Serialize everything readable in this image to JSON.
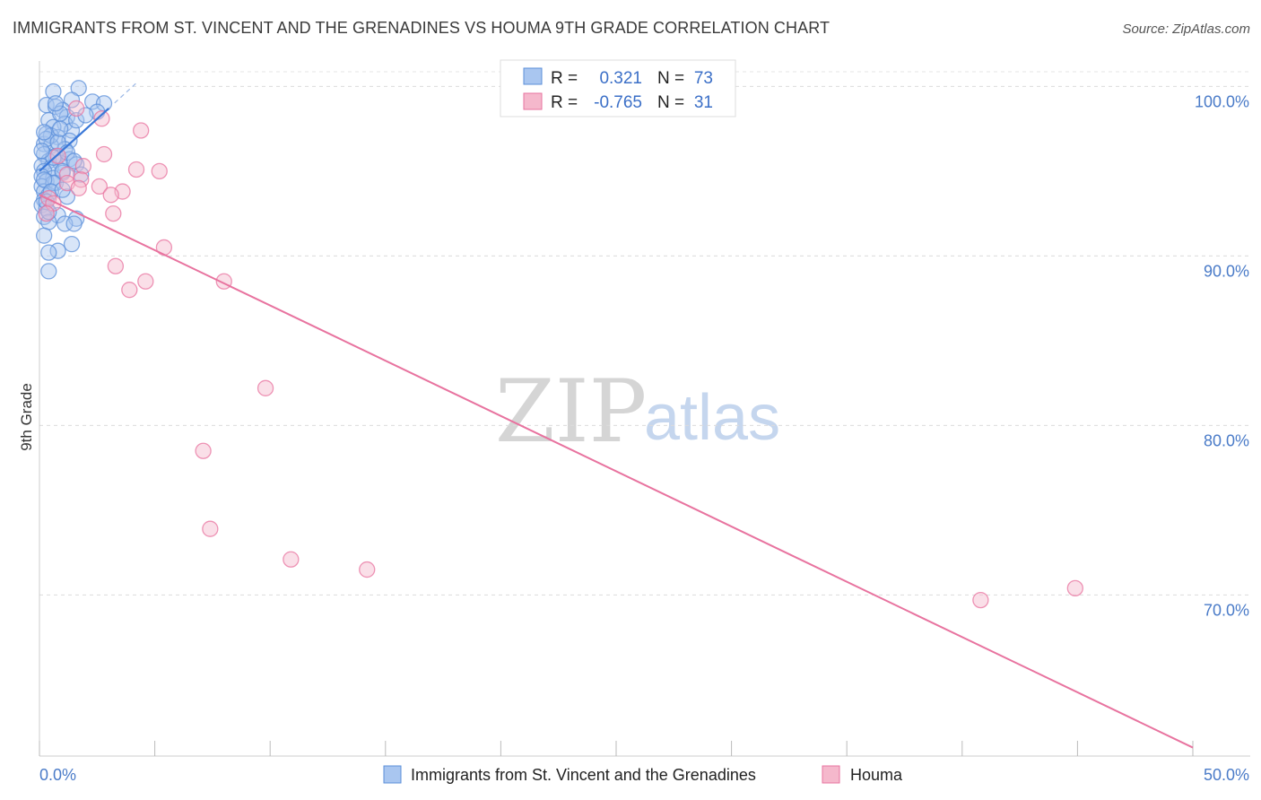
{
  "title": "IMMIGRANTS FROM ST. VINCENT AND THE GRENADINES VS HOUMA 9TH GRADE CORRELATION CHART",
  "source": "Source: ZipAtlas.com",
  "watermark": {
    "zip": "ZIP",
    "atlas": "atlas"
  },
  "colors": {
    "blue": "#5b8fd9",
    "blue_fill": "#a9c6f0",
    "pink": "#e8739f",
    "pink_fill": "#f5b8cc",
    "tick_text": "#4a7bc8"
  },
  "legend": {
    "rows": [
      {
        "r_label": "R =",
        "r_value": "0.321",
        "n_label": "N =",
        "n_value": "73"
      },
      {
        "r_label": "R =",
        "r_value": "-0.765",
        "n_label": "N =",
        "n_value": "31"
      }
    ]
  },
  "chart_data": {
    "type": "scatter",
    "title": "IMMIGRANTS FROM ST. VINCENT AND THE GRENADINES VS HOUMA 9TH GRADE CORRELATION CHART",
    "xlabel": "",
    "ylabel": "9th Grade",
    "xlim": [
      0,
      50
    ],
    "ylim": [
      60.5,
      101.5
    ],
    "x_tick_labels": [
      "0.0%",
      "50.0%"
    ],
    "y_ticks": [
      70,
      80,
      90,
      100
    ],
    "y_tick_labels": [
      "70.0%",
      "80.0%",
      "90.0%",
      "100.0%"
    ],
    "grid": true,
    "series": [
      {
        "name": "Immigrants from St. Vincent and the Grenadines",
        "color": "#5b8fd9",
        "r": 0.321,
        "n": 73,
        "trend": {
          "x": [
            0.0,
            3.0
          ],
          "y": [
            95.0,
            98.7
          ]
        },
        "trend_ext": {
          "x": [
            3.0,
            4.2
          ],
          "y": [
            98.7,
            100.2
          ]
        },
        "points": [
          [
            1.7,
            99.9
          ],
          [
            0.6,
            99.7
          ],
          [
            1.4,
            99.2
          ],
          [
            2.3,
            99.1
          ],
          [
            2.8,
            99.0
          ],
          [
            0.3,
            98.9
          ],
          [
            0.7,
            98.8
          ],
          [
            1.0,
            98.6
          ],
          [
            2.5,
            98.5
          ],
          [
            1.2,
            98.2
          ],
          [
            0.4,
            98.0
          ],
          [
            1.1,
            97.8
          ],
          [
            0.6,
            97.6
          ],
          [
            1.4,
            97.4
          ],
          [
            0.3,
            97.2
          ],
          [
            0.8,
            97.0
          ],
          [
            1.3,
            96.8
          ],
          [
            0.2,
            96.6
          ],
          [
            0.5,
            96.5
          ],
          [
            1.1,
            96.3
          ],
          [
            0.2,
            96.0
          ],
          [
            0.7,
            95.9
          ],
          [
            1.3,
            95.7
          ],
          [
            0.4,
            95.6
          ],
          [
            0.9,
            95.5
          ],
          [
            0.1,
            95.3
          ],
          [
            0.5,
            95.2
          ],
          [
            1.6,
            95.4
          ],
          [
            0.2,
            95.0
          ],
          [
            1.0,
            94.9
          ],
          [
            0.1,
            94.7
          ],
          [
            0.6,
            94.6
          ],
          [
            1.8,
            94.8
          ],
          [
            0.3,
            94.4
          ],
          [
            0.7,
            94.3
          ],
          [
            0.1,
            94.1
          ],
          [
            0.2,
            93.8
          ],
          [
            0.4,
            93.6
          ],
          [
            1.2,
            93.5
          ],
          [
            0.2,
            93.3
          ],
          [
            0.1,
            93.0
          ],
          [
            0.3,
            92.8
          ],
          [
            0.8,
            92.4
          ],
          [
            0.2,
            92.3
          ],
          [
            1.6,
            92.2
          ],
          [
            0.4,
            92.0
          ],
          [
            1.1,
            91.9
          ],
          [
            1.5,
            91.9
          ],
          [
            0.2,
            91.2
          ],
          [
            1.4,
            90.7
          ],
          [
            0.8,
            90.3
          ],
          [
            0.4,
            90.2
          ],
          [
            0.4,
            89.1
          ],
          [
            0.6,
            94.3
          ],
          [
            1.0,
            95.0
          ],
          [
            0.5,
            97.1
          ],
          [
            0.9,
            98.4
          ],
          [
            1.6,
            98.0
          ],
          [
            0.3,
            96.9
          ],
          [
            0.8,
            96.7
          ],
          [
            0.2,
            94.5
          ],
          [
            0.5,
            93.8
          ],
          [
            0.9,
            97.5
          ],
          [
            1.2,
            96.1
          ],
          [
            0.6,
            95.8
          ],
          [
            0.1,
            96.2
          ],
          [
            0.3,
            93.2
          ],
          [
            1.5,
            95.6
          ],
          [
            0.7,
            99.0
          ],
          [
            2.0,
            98.3
          ],
          [
            0.4,
            92.6
          ],
          [
            1.0,
            93.9
          ],
          [
            0.2,
            97.3
          ]
        ]
      },
      {
        "name": "Houma",
        "color": "#e8739f",
        "r": -0.765,
        "n": 31,
        "trend": {
          "x": [
            0.0,
            50.0
          ],
          "y": [
            93.6,
            61.0
          ]
        },
        "points": [
          [
            1.6,
            98.7
          ],
          [
            4.4,
            97.4
          ],
          [
            2.7,
            98.1
          ],
          [
            2.8,
            96.0
          ],
          [
            4.2,
            95.1
          ],
          [
            5.2,
            95.0
          ],
          [
            1.9,
            95.3
          ],
          [
            0.8,
            95.9
          ],
          [
            1.2,
            94.8
          ],
          [
            1.8,
            94.5
          ],
          [
            1.2,
            94.3
          ],
          [
            2.6,
            94.1
          ],
          [
            1.7,
            94.0
          ],
          [
            3.6,
            93.8
          ],
          [
            3.1,
            93.6
          ],
          [
            0.4,
            93.4
          ],
          [
            0.6,
            93.1
          ],
          [
            0.3,
            92.5
          ],
          [
            3.2,
            92.5
          ],
          [
            5.4,
            90.5
          ],
          [
            3.3,
            89.4
          ],
          [
            4.6,
            88.5
          ],
          [
            3.9,
            88.0
          ],
          [
            8.0,
            88.5
          ],
          [
            9.8,
            82.2
          ],
          [
            7.1,
            78.5
          ],
          [
            7.4,
            73.9
          ],
          [
            10.9,
            72.1
          ],
          [
            14.2,
            71.5
          ],
          [
            40.8,
            69.7
          ],
          [
            44.9,
            70.4
          ]
        ]
      }
    ]
  }
}
